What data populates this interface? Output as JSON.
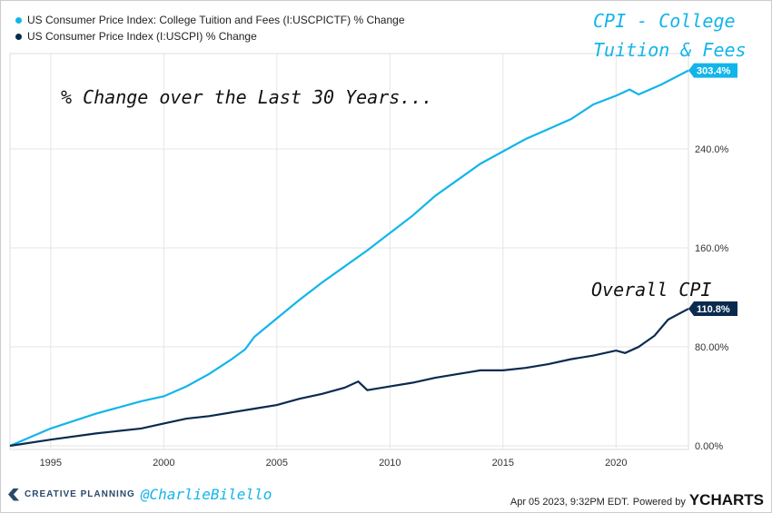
{
  "chart_data": {
    "type": "line",
    "title": "% Change over the Last 30 Years...",
    "xlabel": "",
    "ylabel": "",
    "xlim": [
      1993.2,
      2023.2
    ],
    "ylim": [
      0,
      320
    ],
    "x_ticks": [
      "1995",
      "2000",
      "2005",
      "2010",
      "2015",
      "2020"
    ],
    "y_ticks": [
      "0.00%",
      "80.00%",
      "160.0%",
      "240.0%"
    ],
    "grid": true,
    "legend_position": "top-left",
    "series": [
      {
        "name": "US Consumer Price Index: College Tuition and Fees (I:USCPICTF) % Change",
        "color": "#12b5ea",
        "end_label": "303.4%",
        "points": [
          [
            1993.2,
            0
          ],
          [
            1995,
            14
          ],
          [
            1997,
            26
          ],
          [
            1999,
            36
          ],
          [
            2000,
            40
          ],
          [
            2001,
            48
          ],
          [
            2002,
            58
          ],
          [
            2003,
            70
          ],
          [
            2003.6,
            78
          ],
          [
            2004,
            88
          ],
          [
            2005,
            103
          ],
          [
            2006,
            118
          ],
          [
            2007,
            132
          ],
          [
            2008,
            145
          ],
          [
            2009,
            158
          ],
          [
            2010,
            172
          ],
          [
            2011,
            186
          ],
          [
            2012,
            202
          ],
          [
            2013,
            215
          ],
          [
            2014,
            228
          ],
          [
            2015,
            238
          ],
          [
            2016,
            248
          ],
          [
            2017,
            256
          ],
          [
            2018,
            264
          ],
          [
            2019,
            276
          ],
          [
            2020,
            283
          ],
          [
            2020.6,
            288
          ],
          [
            2021,
            284
          ],
          [
            2022,
            292
          ],
          [
            2023.2,
            303.4
          ]
        ]
      },
      {
        "name": "US Consumer Price Index (I:USCPI) % Change",
        "color": "#0b2a4f",
        "end_label": "110.8%",
        "points": [
          [
            1993.2,
            0
          ],
          [
            1995,
            5
          ],
          [
            1997,
            10
          ],
          [
            1999,
            14
          ],
          [
            2000,
            18
          ],
          [
            2001,
            22
          ],
          [
            2002,
            24
          ],
          [
            2003,
            27
          ],
          [
            2004,
            30
          ],
          [
            2005,
            33
          ],
          [
            2006,
            38
          ],
          [
            2007,
            42
          ],
          [
            2008,
            47
          ],
          [
            2008.6,
            52
          ],
          [
            2009,
            45
          ],
          [
            2010,
            48
          ],
          [
            2011,
            51
          ],
          [
            2012,
            55
          ],
          [
            2013,
            58
          ],
          [
            2014,
            61
          ],
          [
            2015,
            61
          ],
          [
            2016,
            63
          ],
          [
            2017,
            66
          ],
          [
            2018,
            70
          ],
          [
            2019,
            73
          ],
          [
            2020,
            77
          ],
          [
            2020.4,
            75
          ],
          [
            2021,
            80
          ],
          [
            2021.7,
            89
          ],
          [
            2022.3,
            102
          ],
          [
            2023.2,
            110.8
          ]
        ]
      }
    ],
    "annotations": [
      "CPI - College",
      "Tuition & Fees",
      "Overall CPI"
    ]
  },
  "footer": {
    "brand": "CREATIVE PLANNING",
    "handle": "@CharlieBilello",
    "timestamp": "Apr 05 2023, 9:32PM EDT.",
    "powered": "Powered by",
    "ycharts": "YCHARTS"
  }
}
